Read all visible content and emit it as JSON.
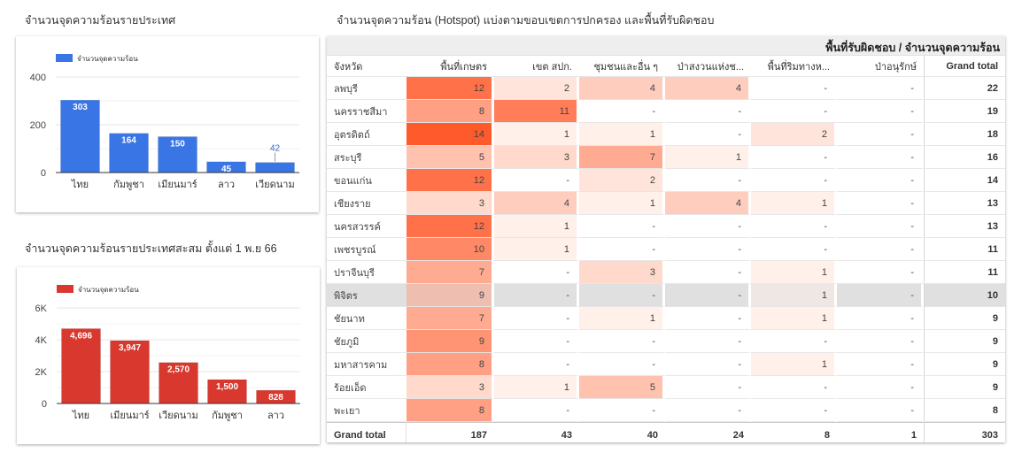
{
  "colors": {
    "bar_blue": "#3a75e6",
    "bar_red": "#d8382e",
    "heat_max": "#ff5a2c",
    "highlight_row": "#e0e0e0"
  },
  "chart_data": [
    {
      "type": "bar",
      "title": "จำนวนจุดความร้อนรายประเทศ",
      "legend": "จำนวนจุดความร้อน",
      "legend_position": "top-left",
      "categories": [
        "ไทย",
        "กัมพูชา",
        "เมียนมาร์",
        "ลาว",
        "เวียดนาม"
      ],
      "values": [
        303,
        164,
        150,
        45,
        42
      ],
      "data_labels": [
        "303",
        "164",
        "150",
        "45",
        "42"
      ],
      "yticks": [
        "0",
        "200",
        "400"
      ],
      "ytick_values": [
        0,
        200,
        400
      ],
      "ylim": [
        0,
        400
      ],
      "grid": true,
      "xlabel": "",
      "ylabel": ""
    },
    {
      "type": "bar",
      "title": "จำนวนจุดความร้อนรายประเทศสะสม ตั้งแต่ 1 พ.ย 66",
      "legend": "จำนวนจุดความร้อน",
      "legend_position": "top-left",
      "categories": [
        "ไทย",
        "เมียนมาร์",
        "เวียดนาม",
        "กัมพูชา",
        "ลาว"
      ],
      "values": [
        4696,
        3947,
        2570,
        1500,
        828
      ],
      "data_labels": [
        "4,696",
        "3,947",
        "2,570",
        "1,500",
        "828"
      ],
      "yticks": [
        "0",
        "2K",
        "4K",
        "6K"
      ],
      "ytick_values": [
        0,
        2000,
        4000,
        6000
      ],
      "ylim": [
        0,
        6000
      ],
      "grid": true,
      "xlabel": "",
      "ylabel": ""
    },
    {
      "type": "table",
      "title": "จำนวนจุดความร้อน (Hotspot) แบ่งตามขอบเขตการปกครอง และพื้นที่รับผิดชอบ",
      "header_title": "พื้นที่รับผิดชอบ / จำนวนจุดความร้อน",
      "columns": [
        "จังหวัด",
        "พื้นที่เกษตร",
        "เขต สปก.",
        "ชุมชนและอื่น ๆ",
        "ป่าสงวนแห่งช...",
        "พื้นที่ริมทางห...",
        "ป่าอนุรักษ์",
        "Grand total"
      ],
      "rows": [
        {
          "province": "ลพบุรี",
          "values": [
            12,
            2,
            4,
            4,
            null,
            null
          ],
          "total": 22
        },
        {
          "province": "นครราชสีมา",
          "values": [
            8,
            11,
            null,
            null,
            null,
            null
          ],
          "total": 19
        },
        {
          "province": "อุตรดิตถ์",
          "values": [
            14,
            1,
            1,
            null,
            2,
            null
          ],
          "total": 18
        },
        {
          "province": "สระบุรี",
          "values": [
            5,
            3,
            7,
            1,
            null,
            null
          ],
          "total": 16
        },
        {
          "province": "ขอนแก่น",
          "values": [
            12,
            null,
            2,
            null,
            null,
            null
          ],
          "total": 14
        },
        {
          "province": "เชียงราย",
          "values": [
            3,
            4,
            1,
            4,
            1,
            null
          ],
          "total": 13
        },
        {
          "province": "นครสวรรค์",
          "values": [
            12,
            1,
            null,
            null,
            null,
            null
          ],
          "total": 13
        },
        {
          "province": "เพชรบูรณ์",
          "values": [
            10,
            1,
            null,
            null,
            null,
            null
          ],
          "total": 11
        },
        {
          "province": "ปราจีนบุรี",
          "values": [
            7,
            null,
            3,
            null,
            1,
            null
          ],
          "total": 11
        },
        {
          "province": "พิจิตร",
          "values": [
            9,
            null,
            null,
            null,
            1,
            null
          ],
          "total": 10,
          "highlighted": true
        },
        {
          "province": "ชัยนาท",
          "values": [
            7,
            null,
            1,
            null,
            1,
            null
          ],
          "total": 9
        },
        {
          "province": "ชัยภูมิ",
          "values": [
            9,
            null,
            null,
            null,
            null,
            null
          ],
          "total": 9
        },
        {
          "province": "มหาสารคาม",
          "values": [
            8,
            null,
            null,
            null,
            1,
            null
          ],
          "total": 9
        },
        {
          "province": "ร้อยเอ็ด",
          "values": [
            3,
            1,
            5,
            null,
            null,
            null
          ],
          "total": 9
        },
        {
          "province": "พะเยา",
          "values": [
            8,
            null,
            null,
            null,
            null,
            null
          ],
          "total": 8
        }
      ],
      "empty_symbol": "-",
      "grand_total_label": "Grand total",
      "grand_totals": [
        187,
        43,
        40,
        24,
        8,
        1
      ],
      "grand_total_all": 303,
      "heat_max": 14
    }
  ]
}
